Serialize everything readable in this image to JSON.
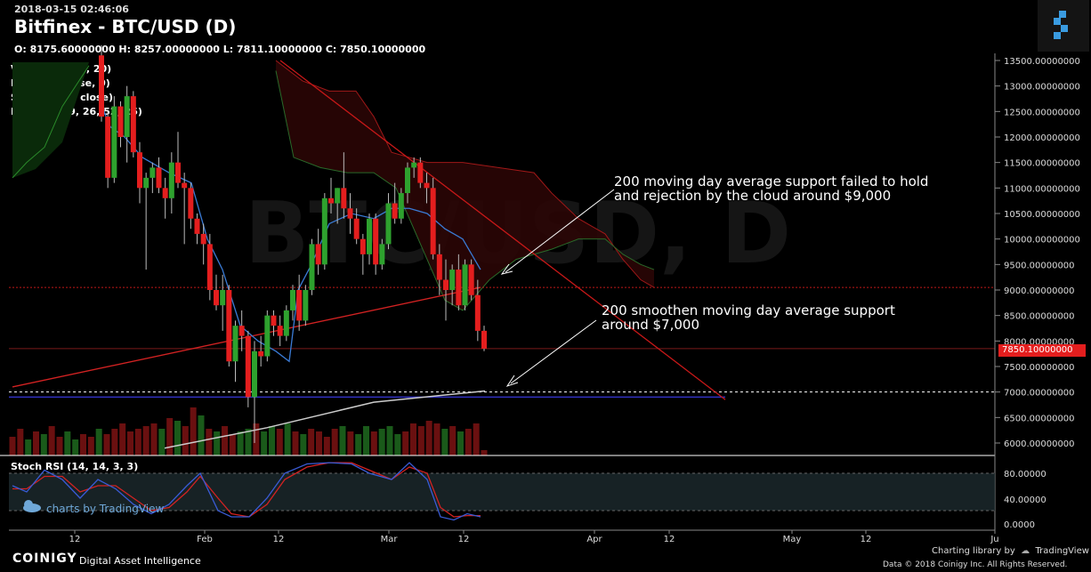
{
  "header": {
    "timestamp": "2018-03-15 02:46:06",
    "title": "Bitfinex - BTC/USD (D)",
    "ohlc": "O: 8175.60000000 H: 8257.00000000 L: 7811.10000000 C: 7850.10000000"
  },
  "indicators": [
    "Volume (false, 20)",
    "MA (200, close, 0)",
    "SMMA (200, close)",
    "Ichimoku (9, 26, 52, 26)"
  ],
  "watermark_text": "BTC/USD, D",
  "price_tag": "7850.10000000",
  "annotations": {
    "first_line1": "200 moving day average support failed to hold",
    "first_line2": "and rejection by the cloud around $9,000",
    "second_line1": "200 smoothen moving day average support",
    "second_line2": "around $7,000"
  },
  "stoch": {
    "label": "Stoch RSI (14, 14, 3, 3)",
    "ticks": [
      "80.00000",
      "40.00000",
      "0.0000"
    ]
  },
  "footer": {
    "brand": "COINIGY",
    "subtitle": "Digital Asset Intelligence",
    "charting": "Charting library by",
    "tradingview": "TradingView",
    "copyright": "Data © 2018  Coinigy Inc. All Rights Reserved.",
    "charts_by": "charts by TradingView"
  },
  "colors": {
    "up": "#2ea12e",
    "down": "#e41e1e",
    "ma_line": "#d22222",
    "smma_line": "#cccccc",
    "tenkan": "#3a7bd5",
    "stoch_k": "#3a5bd5",
    "stoch_d": "#d22222"
  },
  "chart_data": {
    "type": "candlestick",
    "title": "Bitfinex - BTC/USD (D)",
    "y_ticks": [
      13500,
      13000,
      12500,
      12000,
      11500,
      11000,
      10500,
      10000,
      9500,
      9000,
      8500,
      8000,
      7500,
      7000,
      6500,
      6000
    ],
    "y_tick_labels": [
      "13500.00000000",
      "13000.00000000",
      "12500.00000000",
      "12000.00000000",
      "11500.00000000",
      "11000.00000000",
      "10500.00000000",
      "10000.00000000",
      "9500.00000000",
      "9000.00000000",
      "8500.00000000",
      "8000.00000000",
      "7500.00000000",
      "7000.00000000",
      "6500.00000000",
      "6000.00000000"
    ],
    "ylim": [
      5800,
      13600
    ],
    "x_ticks": [
      "12",
      "Feb",
      "12",
      "Mar",
      "12",
      "Apr",
      "12",
      "May",
      "12",
      "Ju"
    ],
    "x_tick_pos": [
      84,
      230,
      313,
      437,
      521,
      668,
      752,
      890,
      973,
      1118
    ],
    "horizontal_levels": [
      {
        "name": "resistance",
        "value": 9050
      },
      {
        "name": "support",
        "value": 7000
      },
      {
        "name": "last",
        "value": 7850
      }
    ],
    "candles": [
      [
        13600,
        13800,
        12300,
        12400
      ],
      [
        12400,
        12500,
        11000,
        11200
      ],
      [
        11200,
        12800,
        11100,
        12600
      ],
      [
        12600,
        12700,
        11800,
        12000
      ],
      [
        12000,
        13000,
        11500,
        12800
      ],
      [
        12800,
        12900,
        11600,
        11700
      ],
      [
        11700,
        11900,
        10700,
        11000
      ],
      [
        11000,
        11300,
        9400,
        11200
      ],
      [
        11200,
        11500,
        10900,
        11400
      ],
      [
        11400,
        11600,
        10900,
        11000
      ],
      [
        11000,
        11200,
        10400,
        10800
      ],
      [
        10800,
        11700,
        10500,
        11500
      ],
      [
        11500,
        12100,
        11000,
        11100
      ],
      [
        11100,
        11300,
        9900,
        11000
      ],
      [
        11000,
        11100,
        10200,
        10400
      ],
      [
        10400,
        10500,
        9900,
        10100
      ],
      [
        10100,
        10300,
        9500,
        9900
      ],
      [
        9900,
        10100,
        8800,
        9000
      ],
      [
        9000,
        9300,
        8600,
        8700
      ],
      [
        8700,
        9300,
        8200,
        9000
      ],
      [
        9000,
        9100,
        7500,
        7600
      ],
      [
        7600,
        8400,
        7200,
        8300
      ],
      [
        8300,
        8600,
        7800,
        8100
      ],
      [
        8100,
        8200,
        6700,
        6900
      ],
      [
        6900,
        8000,
        6000,
        7800
      ],
      [
        7800,
        8100,
        7500,
        7700
      ],
      [
        7700,
        8600,
        7600,
        8500
      ],
      [
        8500,
        8600,
        8100,
        8300
      ],
      [
        8300,
        8500,
        7900,
        8100
      ],
      [
        8100,
        8700,
        8000,
        8600
      ],
      [
        8600,
        9100,
        8400,
        9000
      ],
      [
        9000,
        9300,
        8200,
        8400
      ],
      [
        8400,
        9100,
        8300,
        9000
      ],
      [
        9000,
        10000,
        8900,
        9900
      ],
      [
        9900,
        10200,
        9300,
        9500
      ],
      [
        9500,
        10900,
        9400,
        10800
      ],
      [
        10800,
        11200,
        10500,
        10700
      ],
      [
        10700,
        11000,
        10300,
        11000
      ],
      [
        11000,
        11700,
        10400,
        10600
      ],
      [
        10600,
        10900,
        10100,
        10400
      ],
      [
        10400,
        10600,
        9900,
        10000
      ],
      [
        10000,
        10100,
        9300,
        9700
      ],
      [
        9700,
        10500,
        9500,
        10400
      ],
      [
        10400,
        10500,
        9300,
        9500
      ],
      [
        9500,
        10000,
        9400,
        9900
      ],
      [
        9900,
        10900,
        9800,
        10700
      ],
      [
        10700,
        11100,
        10300,
        10400
      ],
      [
        10400,
        11000,
        10300,
        10900
      ],
      [
        10900,
        11500,
        10700,
        11400
      ],
      [
        11400,
        11600,
        11200,
        11500
      ],
      [
        11500,
        11600,
        11000,
        11100
      ],
      [
        11100,
        11300,
        10700,
        11000
      ],
      [
        11000,
        11200,
        9600,
        9700
      ],
      [
        9700,
        9900,
        8900,
        9200
      ],
      [
        9200,
        9600,
        8400,
        9000
      ],
      [
        9000,
        9500,
        8700,
        9400
      ],
      [
        9400,
        9700,
        8600,
        8700
      ],
      [
        8700,
        9600,
        8600,
        9500
      ],
      [
        9500,
        9600,
        8800,
        8900
      ],
      [
        8900,
        9200,
        8000,
        8200
      ],
      [
        8200,
        8300,
        7800,
        7850
      ]
    ],
    "volume_scale": [
      0.35,
      0.5,
      0.3,
      0.45,
      0.4,
      0.55,
      0.35,
      0.45,
      0.3,
      0.4,
      0.35,
      0.5,
      0.4,
      0.5,
      0.6,
      0.45,
      0.5,
      0.55,
      0.6,
      0.5,
      0.7,
      0.65,
      0.55,
      0.9,
      0.75,
      0.5,
      0.45,
      0.55,
      0.4,
      0.45,
      0.5,
      0.6,
      0.45,
      0.55,
      0.5,
      0.6,
      0.45,
      0.4,
      0.5,
      0.45,
      0.35,
      0.5,
      0.55,
      0.45,
      0.4,
      0.55,
      0.45,
      0.5,
      0.55,
      0.4,
      0.45,
      0.6,
      0.55,
      0.65,
      0.6,
      0.5,
      0.55,
      0.45,
      0.5,
      0.6,
      0.1
    ],
    "ma_200_points": [
      [
        14,
        7100
      ],
      [
        540,
        9050
      ]
    ],
    "smma_200_points": [
      [
        185,
        5900
      ],
      [
        300,
        6300
      ],
      [
        420,
        6800
      ],
      [
        545,
        7020
      ]
    ],
    "trendline": [
      [
        315,
        13500
      ],
      [
        815,
        6850
      ]
    ],
    "tenkan_points": [
      [
        112,
        12700
      ],
      [
        124,
        12200
      ],
      [
        140,
        12000
      ],
      [
        160,
        11600
      ],
      [
        190,
        11300
      ],
      [
        215,
        11100
      ],
      [
        233,
        10000
      ],
      [
        250,
        9400
      ],
      [
        270,
        8300
      ],
      [
        290,
        8000
      ],
      [
        310,
        7800
      ],
      [
        325,
        7600
      ],
      [
        335,
        9000
      ],
      [
        350,
        9500
      ],
      [
        370,
        10300
      ],
      [
        395,
        10500
      ],
      [
        420,
        10400
      ],
      [
        440,
        10600
      ],
      [
        460,
        10600
      ],
      [
        480,
        10500
      ],
      [
        500,
        10200
      ],
      [
        520,
        10000
      ],
      [
        540,
        9400
      ]
    ],
    "cloud_upper": [
      [
        310,
        13500
      ],
      [
        340,
        13100
      ],
      [
        370,
        12900
      ],
      [
        400,
        12900
      ],
      [
        420,
        12400
      ],
      [
        440,
        11700
      ],
      [
        460,
        11600
      ],
      [
        480,
        11500
      ],
      [
        520,
        11500
      ],
      [
        560,
        11400
      ],
      [
        600,
        11300
      ],
      [
        620,
        10900
      ],
      [
        650,
        10400
      ],
      [
        680,
        10100
      ],
      [
        700,
        9600
      ],
      [
        720,
        9200
      ],
      [
        735,
        9050
      ]
    ],
    "cloud_lower": [
      [
        310,
        13300
      ],
      [
        330,
        11600
      ],
      [
        360,
        11400
      ],
      [
        390,
        11300
      ],
      [
        420,
        11300
      ],
      [
        445,
        11000
      ],
      [
        470,
        10000
      ],
      [
        500,
        8800
      ],
      [
        520,
        8600
      ],
      [
        550,
        9200
      ],
      [
        580,
        9600
      ],
      [
        620,
        9800
      ],
      [
        650,
        10000
      ],
      [
        680,
        10000
      ],
      [
        700,
        9700
      ],
      [
        720,
        9500
      ],
      [
        735,
        9400
      ]
    ],
    "lagging_points": [
      [
        14,
        11200
      ],
      [
        30,
        11500
      ],
      [
        50,
        11800
      ],
      [
        70,
        12600
      ],
      [
        100,
        13400
      ]
    ],
    "stoch_k": [
      [
        14,
        60
      ],
      [
        30,
        50
      ],
      [
        50,
        85
      ],
      [
        70,
        70
      ],
      [
        90,
        40
      ],
      [
        110,
        70
      ],
      [
        130,
        55
      ],
      [
        150,
        30
      ],
      [
        170,
        15
      ],
      [
        190,
        30
      ],
      [
        210,
        60
      ],
      [
        225,
        80
      ],
      [
        245,
        20
      ],
      [
        260,
        10
      ],
      [
        280,
        10
      ],
      [
        300,
        40
      ],
      [
        320,
        80
      ],
      [
        345,
        95
      ],
      [
        370,
        97
      ],
      [
        395,
        95
      ],
      [
        415,
        80
      ],
      [
        440,
        70
      ],
      [
        460,
        97
      ],
      [
        480,
        70
      ],
      [
        495,
        10
      ],
      [
        510,
        5
      ],
      [
        525,
        15
      ],
      [
        540,
        10
      ]
    ],
    "stoch_d": [
      [
        14,
        55
      ],
      [
        30,
        55
      ],
      [
        50,
        75
      ],
      [
        70,
        75
      ],
      [
        90,
        50
      ],
      [
        110,
        60
      ],
      [
        130,
        60
      ],
      [
        150,
        40
      ],
      [
        170,
        20
      ],
      [
        190,
        25
      ],
      [
        210,
        50
      ],
      [
        225,
        75
      ],
      [
        245,
        40
      ],
      [
        260,
        15
      ],
      [
        280,
        10
      ],
      [
        300,
        30
      ],
      [
        320,
        70
      ],
      [
        345,
        90
      ],
      [
        370,
        97
      ],
      [
        395,
        97
      ],
      [
        415,
        85
      ],
      [
        440,
        70
      ],
      [
        460,
        90
      ],
      [
        480,
        80
      ],
      [
        495,
        25
      ],
      [
        510,
        10
      ],
      [
        525,
        12
      ],
      [
        540,
        12
      ]
    ]
  }
}
